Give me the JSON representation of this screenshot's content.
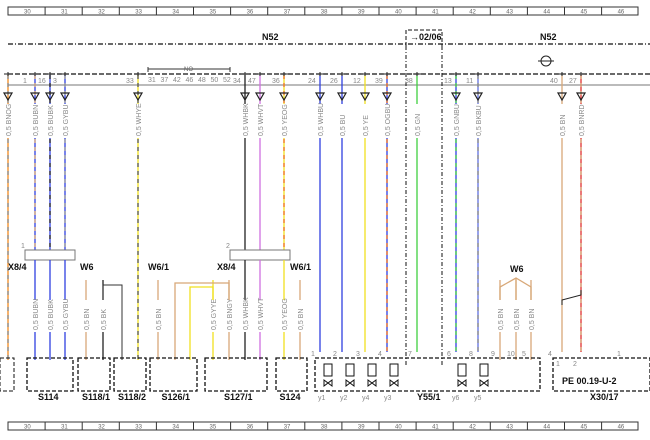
{
  "columns": [
    "30",
    "31",
    "32",
    "33",
    "34",
    "35",
    "36",
    "37",
    "38",
    "39",
    "40",
    "41",
    "42",
    "43",
    "44",
    "45",
    "46"
  ],
  "module": {
    "name": "N52",
    "name_right": "N52",
    "date_marker": "→02/06",
    "bracket_label": "NO",
    "bracket_pins": [
      "31",
      "37",
      "42",
      "46",
      "48",
      "50",
      "52"
    ]
  },
  "wires_top": [
    {
      "pin": "",
      "label": "0,5 BNOG",
      "c1": "#f08a20",
      "c2": "#888888"
    },
    {
      "pin": "1",
      "label": "0,5 BUBN",
      "c1": "#3040e0",
      "c2": "#d8a878"
    },
    {
      "pin": "16",
      "label": "0,5 BUBK",
      "c1": "#3040e0",
      "c2": "#222222"
    },
    {
      "pin": "3",
      "label": "0,5 GYBU",
      "c1": "#3040e0",
      "c2": "#999999"
    },
    {
      "pin": "33",
      "label": "0,5 WHYE",
      "c1": "#f0e020",
      "c2": "#555555"
    },
    {
      "pin": "34",
      "label": "0,5 WHBK",
      "c1": "#222222",
      "c2": "#222222"
    },
    {
      "pin": "47",
      "label": "0,5 WHVT",
      "c1": "#d070e0",
      "c2": "#d070e0"
    },
    {
      "pin": "36",
      "label": "0,5 YEOG",
      "c1": "#f0e020",
      "c2": "#f07020"
    },
    {
      "pin": "24",
      "label": "0,5 WHBU",
      "c1": "#3040e0",
      "c2": "#3040e0"
    },
    {
      "pin": "26",
      "label": "0,5 BU",
      "c1": "#3040e0",
      "c2": "#3040e0"
    },
    {
      "pin": "12",
      "label": "0,5 YE",
      "c1": "#f0e020",
      "c2": "#f0e020"
    },
    {
      "pin": "39",
      "label": "0,5 OGBU",
      "c1": "#3040e0",
      "c2": "#f07020"
    },
    {
      "pin": "38",
      "label": "0,5 GN",
      "c1": "#40d040",
      "c2": "#40d040"
    },
    {
      "pin": "13",
      "label": "0,5 GNBU",
      "c1": "#3040e0",
      "c2": "#40d040"
    },
    {
      "pin": "11",
      "label": "0,5 BKBU",
      "c1": "#6070e0",
      "c2": "#888888"
    },
    {
      "pin": "40",
      "label": "0,5 BN",
      "c1": "#d8a878",
      "c2": "#d8a878"
    },
    {
      "pin": "27",
      "label": "0,5 BNRD",
      "c1": "#e03030",
      "c2": "#d8a878"
    }
  ],
  "connectors": {
    "x8_4_left": "X8/4",
    "x8_4_right": "X8/4",
    "w6_left": "W6",
    "w6_1_left": "W6/1",
    "w6_1_right": "W6/1",
    "w6_right": "W6",
    "x8_left_num": "1",
    "x8_right_num": "2"
  },
  "wires_bottom": [
    {
      "label": "0,5 BUBN",
      "c": "#3040e0"
    },
    {
      "label": "0,5 BUBK",
      "c": "#3040e0"
    },
    {
      "label": "0,5 GYBU",
      "c": "#3040e0"
    },
    {
      "label": "0,5 BN",
      "c": "#d8a878"
    },
    {
      "label": "0,5 BK",
      "c": "#222222"
    },
    {
      "label": "0,5 BN",
      "c": "#d8a878"
    },
    {
      "label": "0,5 GYYE",
      "c": "#f0e020"
    },
    {
      "label": "0,5 BNGY",
      "c": "#d8a878"
    },
    {
      "label": "0,5 WHBK",
      "c": "#222222"
    },
    {
      "label": "0,5 WHVT",
      "c": "#d070e0"
    },
    {
      "label": "0,5 YEOG",
      "c": "#f0e020"
    },
    {
      "label": "0,5 BN",
      "c": "#d8a878"
    },
    {
      "label": "0,5 BN",
      "c": "#d8a878"
    },
    {
      "label": "0,5 BN",
      "c": "#d8a878"
    },
    {
      "label": "0,5 BN",
      "c": "#d8a878"
    }
  ],
  "components": [
    "S114",
    "S118/1",
    "S118/2",
    "S126/1",
    "S127/1",
    "S124",
    "Y55/1",
    "X30/17"
  ],
  "valves": [
    "y1",
    "y2",
    "y4",
    "y3",
    "y6",
    "y5"
  ],
  "y55_pins": [
    "1",
    "2",
    "3",
    "4",
    "7",
    "6",
    "8",
    "9",
    "10",
    "5"
  ],
  "x30_text": "PE 00.19-U-2",
  "x30_pins": [
    "4",
    "1",
    "2",
    "1"
  ]
}
